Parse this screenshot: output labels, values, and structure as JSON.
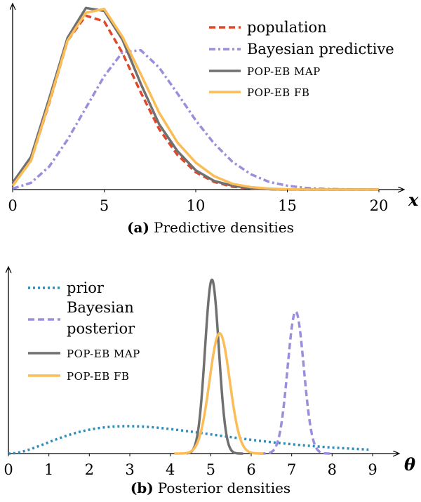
{
  "chart_data": [
    {
      "type": "line",
      "panel_label": "(a)",
      "caption": "Predictive densities",
      "xlabel": "x",
      "ylabel": "",
      "xlim": [
        0,
        20
      ],
      "ylim": [
        0,
        0.19
      ],
      "grid": false,
      "legend_position": "top-right",
      "x_ticks": [
        "0",
        "5",
        "10",
        "15",
        "20"
      ],
      "x_tick_values": [
        0,
        5,
        10,
        15,
        20
      ],
      "x": [
        0,
        1,
        2,
        3,
        4,
        5,
        6,
        7,
        8,
        9,
        10,
        11,
        12,
        13,
        14,
        15,
        16,
        17,
        18,
        19,
        20
      ],
      "series": [
        {
          "name": "population",
          "legend": [
            "population"
          ],
          "color": "#e0482b",
          "style": "dashed",
          "values": [
            0.004,
            0.03,
            0.09,
            0.155,
            0.181,
            0.175,
            0.142,
            0.101,
            0.063,
            0.036,
            0.018,
            0.008,
            0.003,
            0.0012,
            0.0004,
            0.0001,
            0,
            0,
            0,
            0,
            0
          ]
        },
        {
          "name": "Bayesian predictive",
          "legend": [
            "Bayesian predictive"
          ],
          "color": "#9b8fdc",
          "style": "dashdot",
          "values": [
            0.001,
            0.007,
            0.024,
            0.052,
            0.085,
            0.118,
            0.143,
            0.145,
            0.127,
            0.1,
            0.072,
            0.048,
            0.029,
            0.016,
            0.008,
            0.004,
            0.0017,
            0.0007,
            0.0003,
            0.0001,
            0
          ]
        },
        {
          "name": "POP-EB MAP",
          "legend": [
            "POP-EB MAP"
          ],
          "color": "#707070",
          "style": "solid",
          "values": [
            0.007,
            0.034,
            0.095,
            0.158,
            0.189,
            0.186,
            0.156,
            0.11,
            0.068,
            0.04,
            0.02,
            0.009,
            0.004,
            0.0014,
            0.0005,
            0.0001,
            0,
            0,
            0,
            0,
            0
          ]
        },
        {
          "name": "POP-EB FB",
          "legend": [
            "POP-EB FB"
          ],
          "color": "#fbbd58",
          "style": "solid",
          "values": [
            0.004,
            0.03,
            0.091,
            0.155,
            0.184,
            0.188,
            0.159,
            0.12,
            0.08,
            0.049,
            0.028,
            0.014,
            0.006,
            0.0026,
            0.001,
            0.0003,
            0,
            0,
            0,
            0,
            0
          ]
        }
      ]
    },
    {
      "type": "line",
      "panel_label": "(b)",
      "caption": "Posterior densities",
      "xlabel": "θ",
      "ylabel": "",
      "xlim": [
        0,
        9
      ],
      "ylim": [
        0,
        1.26
      ],
      "grid": false,
      "legend_position": "top-left",
      "x_ticks": [
        "0",
        "1",
        "2",
        "3",
        "4",
        "5",
        "6",
        "7",
        "8",
        "9"
      ],
      "x_tick_values": [
        0,
        1,
        2,
        3,
        4,
        5,
        6,
        7,
        8,
        9
      ],
      "series": [
        {
          "name": "prior",
          "legend": [
            "prior"
          ],
          "color": "#2f8dbb",
          "style": "dotted",
          "kind": "gamma",
          "shape": 3.1,
          "scale": 1.4,
          "x_range": [
            0,
            8.9
          ]
        },
        {
          "name": "Bayesian posterior",
          "legend": [
            "Bayesian",
            "posterior"
          ],
          "color": "#9b8fdc",
          "style": "dashed",
          "kind": "normal",
          "mean": 7.1,
          "sd": 0.2,
          "peak": 0.98,
          "x_range": [
            6.2,
            8.0
          ]
        },
        {
          "name": "POP-EB MAP",
          "legend": [
            "POP-EB MAP"
          ],
          "color": "#707070",
          "style": "solid",
          "kind": "normal",
          "mean": 5.03,
          "sd": 0.17,
          "peak": 1.2,
          "x_range": [
            4.4,
            5.8
          ]
        },
        {
          "name": "POP-EB FB",
          "legend": [
            "POP-EB FB"
          ],
          "color": "#fbbd58",
          "style": "solid",
          "kind": "normal",
          "mean": 5.22,
          "sd": 0.25,
          "peak": 0.83,
          "x_range": [
            4.1,
            6.3
          ]
        }
      ]
    }
  ]
}
